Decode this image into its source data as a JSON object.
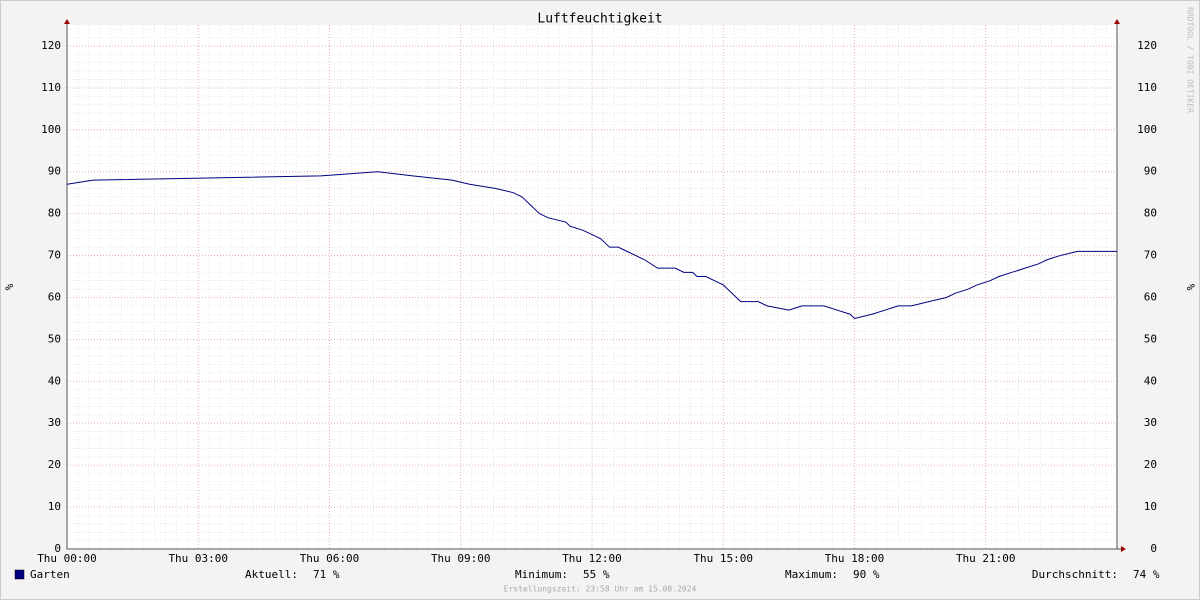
{
  "chart_data": {
    "type": "line",
    "title": "Luftfeuchtigkeit",
    "y_label": "%",
    "watermark": "RRDTOOL / TOBI OETIKER",
    "x": [
      0,
      0.6,
      5.8,
      7.1,
      7.9,
      8.8,
      9.2,
      9.8,
      10.2,
      10.4,
      10.5,
      10.6,
      10.7,
      10.8,
      11,
      11.4,
      11.5,
      11.8,
      12,
      12.2,
      12.4,
      12.6,
      12.8,
      13,
      13.2,
      13.5,
      13.9,
      14.1,
      14.3,
      14.4,
      14.6,
      14.8,
      15,
      15.2,
      15.3,
      15.4,
      15.8,
      16,
      16.5,
      16.8,
      17.3,
      17.6,
      17.9,
      18,
      18.4,
      18.7,
      19,
      19.3,
      19.7,
      20.1,
      20.3,
      20.6,
      20.8,
      21.1,
      21.3,
      21.6,
      21.9,
      22.2,
      22.4,
      22.7,
      23.1,
      24
    ],
    "series": [
      {
        "name": "Garten",
        "color": "#000080",
        "values": [
          87,
          88,
          89,
          90,
          89,
          88,
          87,
          86,
          85,
          84,
          83,
          82,
          81,
          80,
          79,
          78,
          77,
          76,
          75,
          74,
          72,
          72,
          71,
          70,
          69,
          67,
          67,
          66,
          66,
          65,
          65,
          64,
          63,
          61,
          60,
          59,
          59,
          58,
          57,
          58,
          58,
          57,
          56,
          55,
          56,
          57,
          58,
          58,
          59,
          60,
          61,
          62,
          63,
          64,
          65,
          66,
          67,
          68,
          69,
          70,
          71,
          71
        ]
      }
    ],
    "xlim": [
      0,
      24
    ],
    "xticks": [
      {
        "value": 0,
        "label": "Thu 00:00"
      },
      {
        "value": 3,
        "label": "Thu 03:00"
      },
      {
        "value": 6,
        "label": "Thu 06:00"
      },
      {
        "value": 9,
        "label": "Thu 09:00"
      },
      {
        "value": 12,
        "label": "Thu 12:00"
      },
      {
        "value": 15,
        "label": "Thu 15:00"
      },
      {
        "value": 18,
        "label": "Thu 18:00"
      },
      {
        "value": 21,
        "label": "Thu 21:00"
      }
    ],
    "ylim": [
      0,
      125
    ],
    "yticks": [
      0,
      10,
      20,
      30,
      40,
      50,
      60,
      70,
      80,
      90,
      100,
      110,
      120
    ],
    "grid": true,
    "stats": [
      {
        "label": "Aktuell:",
        "value": "71 %"
      },
      {
        "label": "Minimum:",
        "value": "55 %"
      },
      {
        "label": "Maximum:",
        "value": "90 %"
      },
      {
        "label": "Durchschnitt:",
        "value": "74 %"
      }
    ],
    "footer": "Erstellungszeit: 23:58 Uhr am 15.08.2024"
  }
}
